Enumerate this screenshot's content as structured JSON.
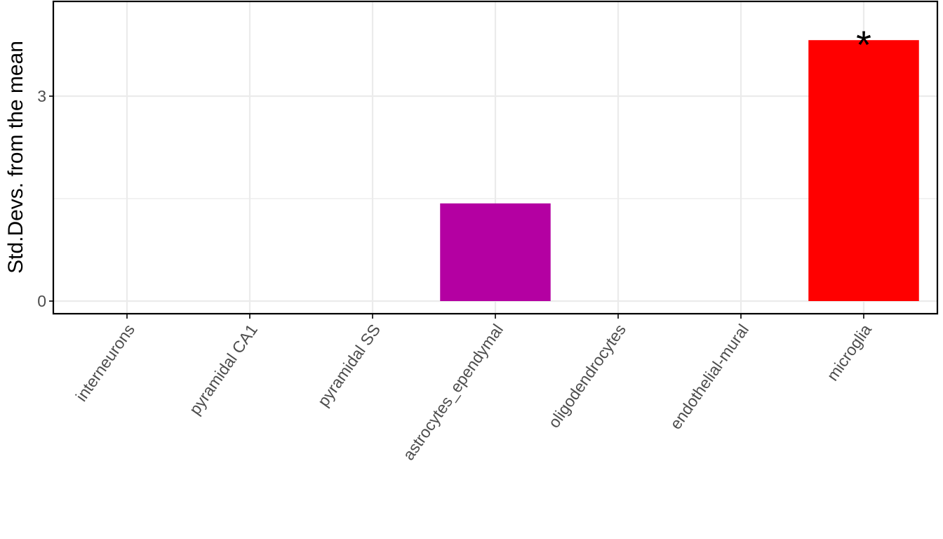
{
  "chart_data": {
    "type": "bar",
    "y_label": "Std.Devs. from the mean",
    "categories": [
      "interneurons",
      "pyramidal CA1",
      "pyramidal SS",
      "astrocytes_ependymal",
      "oligodendrocytes",
      "endothelial-mural",
      "microglia"
    ],
    "values": [
      0,
      0,
      0,
      1.43,
      0,
      0,
      3.82
    ],
    "colors": [
      null,
      null,
      null,
      "#b400a2",
      null,
      null,
      "#ff0000"
    ],
    "ylim": [
      -0.185,
      4.387
    ],
    "yticks": [
      0,
      3
    ],
    "y_minor_grid": [
      1.5
    ],
    "grid": true,
    "annotations": [
      {
        "text": "*",
        "category": "microglia"
      }
    ]
  }
}
